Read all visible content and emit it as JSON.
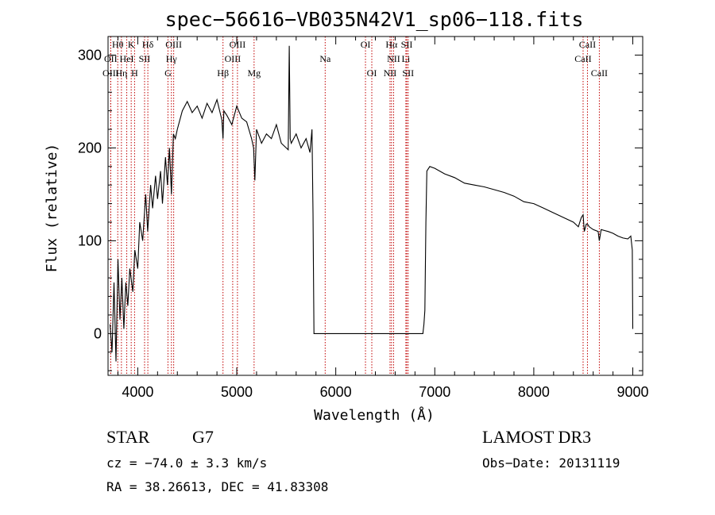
{
  "chart_data": {
    "type": "line",
    "title": "spec−56616−VB035N42V1_sp06−118.fits",
    "xlabel": "Wavelength (Å)",
    "ylabel": "Flux (relative)",
    "xlim": [
      3700,
      9100
    ],
    "ylim": [
      -45,
      320
    ],
    "xticks": [
      4000,
      5000,
      6000,
      7000,
      8000,
      9000
    ],
    "xtick_labels": [
      "4000",
      "5000",
      "6000",
      "7000",
      "8000",
      "9000"
    ],
    "yticks": [
      0,
      100,
      200,
      300
    ],
    "ytick_labels": [
      "0",
      "100",
      "200",
      "300"
    ],
    "series": [
      {
        "name": "flux",
        "x": [
          3720,
          3740,
          3760,
          3780,
          3800,
          3820,
          3840,
          3860,
          3880,
          3900,
          3920,
          3950,
          3970,
          4000,
          4020,
          4050,
          4080,
          4100,
          4130,
          4150,
          4180,
          4200,
          4230,
          4250,
          4280,
          4300,
          4320,
          4340,
          4360,
          4380,
          4400,
          4450,
          4500,
          4550,
          4600,
          4650,
          4700,
          4750,
          4800,
          4850,
          4861,
          4870,
          4900,
          4950,
          5000,
          5050,
          5100,
          5150,
          5170,
          5183,
          5200,
          5250,
          5300,
          5350,
          5400,
          5450,
          5500,
          5520,
          5530,
          5540,
          5550,
          5600,
          5650,
          5700,
          5740,
          5760,
          5770,
          5780,
          5800,
          5850,
          5900,
          6000,
          6200,
          6400,
          6600,
          6800,
          6850,
          6880,
          6890,
          6900,
          6910,
          6920,
          6950,
          7000,
          7100,
          7200,
          7300,
          7400,
          7500,
          7600,
          7700,
          7800,
          7900,
          8000,
          8100,
          8200,
          8300,
          8400,
          8450,
          8480,
          8498,
          8510,
          8530,
          8542,
          8560,
          8600,
          8650,
          8662,
          8680,
          8750,
          8800,
          8850,
          8900,
          8950,
          8980,
          8995,
          9000
        ],
        "y": [
          10,
          -20,
          55,
          -30,
          80,
          15,
          60,
          5,
          55,
          30,
          70,
          45,
          90,
          70,
          120,
          100,
          150,
          110,
          160,
          135,
          170,
          145,
          175,
          140,
          190,
          160,
          200,
          150,
          215,
          210,
          220,
          240,
          250,
          238,
          245,
          232,
          248,
          238,
          252,
          230,
          210,
          240,
          235,
          225,
          245,
          232,
          228,
          210,
          200,
          165,
          220,
          205,
          215,
          210,
          225,
          205,
          200,
          198,
          310,
          210,
          205,
          215,
          200,
          210,
          195,
          220,
          130,
          0,
          0,
          0,
          0,
          0,
          0,
          0,
          0,
          0,
          0,
          0,
          10,
          25,
          120,
          175,
          180,
          178,
          172,
          168,
          162,
          160,
          158,
          155,
          152,
          148,
          142,
          140,
          135,
          130,
          125,
          120,
          115,
          125,
          128,
          110,
          118,
          118,
          115,
          112,
          110,
          100,
          112,
          110,
          108,
          105,
          103,
          102,
          105,
          90,
          5
        ]
      }
    ],
    "spectral_lines": [
      {
        "label": "Hθ",
        "x": 3798,
        "row": 0
      },
      {
        "label": "K",
        "x": 3934,
        "row": 0
      },
      {
        "label": "Hδ",
        "x": 4102,
        "row": 0
      },
      {
        "label": "OIII",
        "x": 4363,
        "row": 0
      },
      {
        "label": "OIII",
        "x": 5007,
        "row": 0
      },
      {
        "label": "OI",
        "x": 6300,
        "row": 0
      },
      {
        "label": "Hα",
        "x": 6563,
        "row": 0
      },
      {
        "label": "SII",
        "x": 6717,
        "row": 0
      },
      {
        "label": "CaII",
        "x": 8542,
        "row": 0
      },
      {
        "label": "OII",
        "x": 3727,
        "row": 1
      },
      {
        "label": "HeI",
        "x": 3889,
        "row": 1
      },
      {
        "label": "SII",
        "x": 4069,
        "row": 1
      },
      {
        "label": "Hγ",
        "x": 4340,
        "row": 1
      },
      {
        "label": "OIII",
        "x": 4959,
        "row": 1
      },
      {
        "label": "Na",
        "x": 5893,
        "row": 1
      },
      {
        "label": "NII",
        "x": 6584,
        "row": 1
      },
      {
        "label": "Li",
        "x": 6708,
        "row": 1
      },
      {
        "label": "CaII",
        "x": 8498,
        "row": 1
      },
      {
        "label": "OIII",
        "x": 3727,
        "row": 2
      },
      {
        "label": "Hη",
        "x": 3835,
        "row": 2
      },
      {
        "label": "H",
        "x": 3968,
        "row": 2
      },
      {
        "label": "G",
        "x": 4305,
        "row": 2
      },
      {
        "label": "Hβ",
        "x": 4861,
        "row": 2
      },
      {
        "label": "Mg",
        "x": 5175,
        "row": 2
      },
      {
        "label": "OI",
        "x": 6364,
        "row": 2
      },
      {
        "label": "NII",
        "x": 6548,
        "row": 2
      },
      {
        "label": "SII",
        "x": 6731,
        "row": 2
      },
      {
        "label": "CaII",
        "x": 8662,
        "row": 2
      }
    ]
  },
  "info": {
    "object_class": "STAR",
    "subclass": "G7",
    "survey": "LAMOST DR3",
    "redshift": "cz = −74.0 ± 3.3 km/s",
    "obs_date": "Obs−Date: 20131119",
    "coords": "RA =  38.26613, DEC =  41.83308"
  }
}
